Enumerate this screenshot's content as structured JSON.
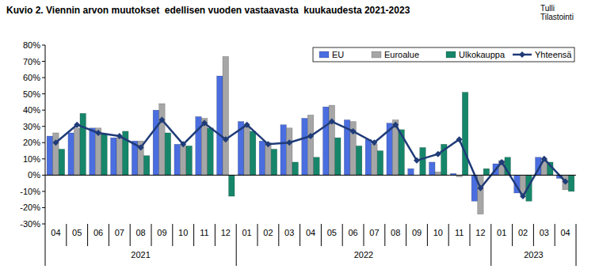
{
  "chart_data": {
    "type": "bar",
    "title": "Kuvio 2. Viennin arvon muutokset  edellisen vuoden vastaavasta  kuukaudesta 2021-2023",
    "source": [
      "Tulli",
      "Tilastointi"
    ],
    "categories": [
      "04",
      "05",
      "06",
      "07",
      "08",
      "09",
      "10",
      "11",
      "12",
      "01",
      "02",
      "03",
      "04",
      "05",
      "06",
      "07",
      "08",
      "09",
      "10",
      "11",
      "12",
      "01",
      "02",
      "03",
      "04"
    ],
    "category_groups": [
      {
        "label": "2021",
        "count": 9
      },
      {
        "label": "2022",
        "count": 12
      },
      {
        "label": "2023",
        "count": 4
      }
    ],
    "series": [
      {
        "name": "EU",
        "type": "bar",
        "color": "#4a6ee0",
        "values": [
          24,
          26,
          29,
          23,
          21,
          40,
          19,
          36,
          61,
          33,
          21,
          31,
          35,
          42,
          34,
          22,
          32,
          4,
          8,
          1,
          -16,
          7,
          -11,
          11,
          -2
        ]
      },
      {
        "name": "Euroalue",
        "type": "bar",
        "color": "#a6a6a6",
        "values": [
          26,
          29,
          29,
          23,
          21,
          44,
          18,
          35,
          73,
          30,
          20,
          29,
          37,
          43,
          33,
          19,
          34,
          0,
          2,
          -1,
          -24,
          9,
          -12,
          10,
          -9
        ]
      },
      {
        "name": "Ulkokauppa",
        "type": "bar",
        "color": "#16866a",
        "values": [
          16,
          38,
          25,
          27,
          12,
          26,
          18,
          29,
          -13,
          27,
          16,
          8,
          11,
          23,
          18,
          15,
          28,
          17,
          19,
          51,
          4,
          11,
          -16,
          8,
          -10
        ]
      },
      {
        "name": "Yhteensä",
        "type": "line",
        "color": "#1f3b78",
        "marker": "diamond",
        "values": [
          20,
          31,
          26,
          24,
          17,
          34,
          19,
          32,
          22,
          31,
          19,
          20,
          24,
          33,
          27,
          20,
          31,
          9,
          13,
          22,
          -8,
          8,
          -13,
          10,
          -4
        ]
      }
    ],
    "ylim": [
      -30,
      80
    ],
    "yticks": [
      {
        "value": -30,
        "label": "-30%"
      },
      {
        "value": -20,
        "label": "-20%"
      },
      {
        "value": -10,
        "label": "-10%"
      },
      {
        "value": 0,
        "label": "0%"
      },
      {
        "value": 10,
        "label": "10%"
      },
      {
        "value": 20,
        "label": "20%"
      },
      {
        "value": 30,
        "label": "30%"
      },
      {
        "value": 40,
        "label": "40%"
      },
      {
        "value": 50,
        "label": "50%"
      },
      {
        "value": 60,
        "label": "60%"
      },
      {
        "value": 70,
        "label": "70%"
      },
      {
        "value": 80,
        "label": "80%"
      }
    ],
    "grid": false,
    "legend": "top-right"
  }
}
